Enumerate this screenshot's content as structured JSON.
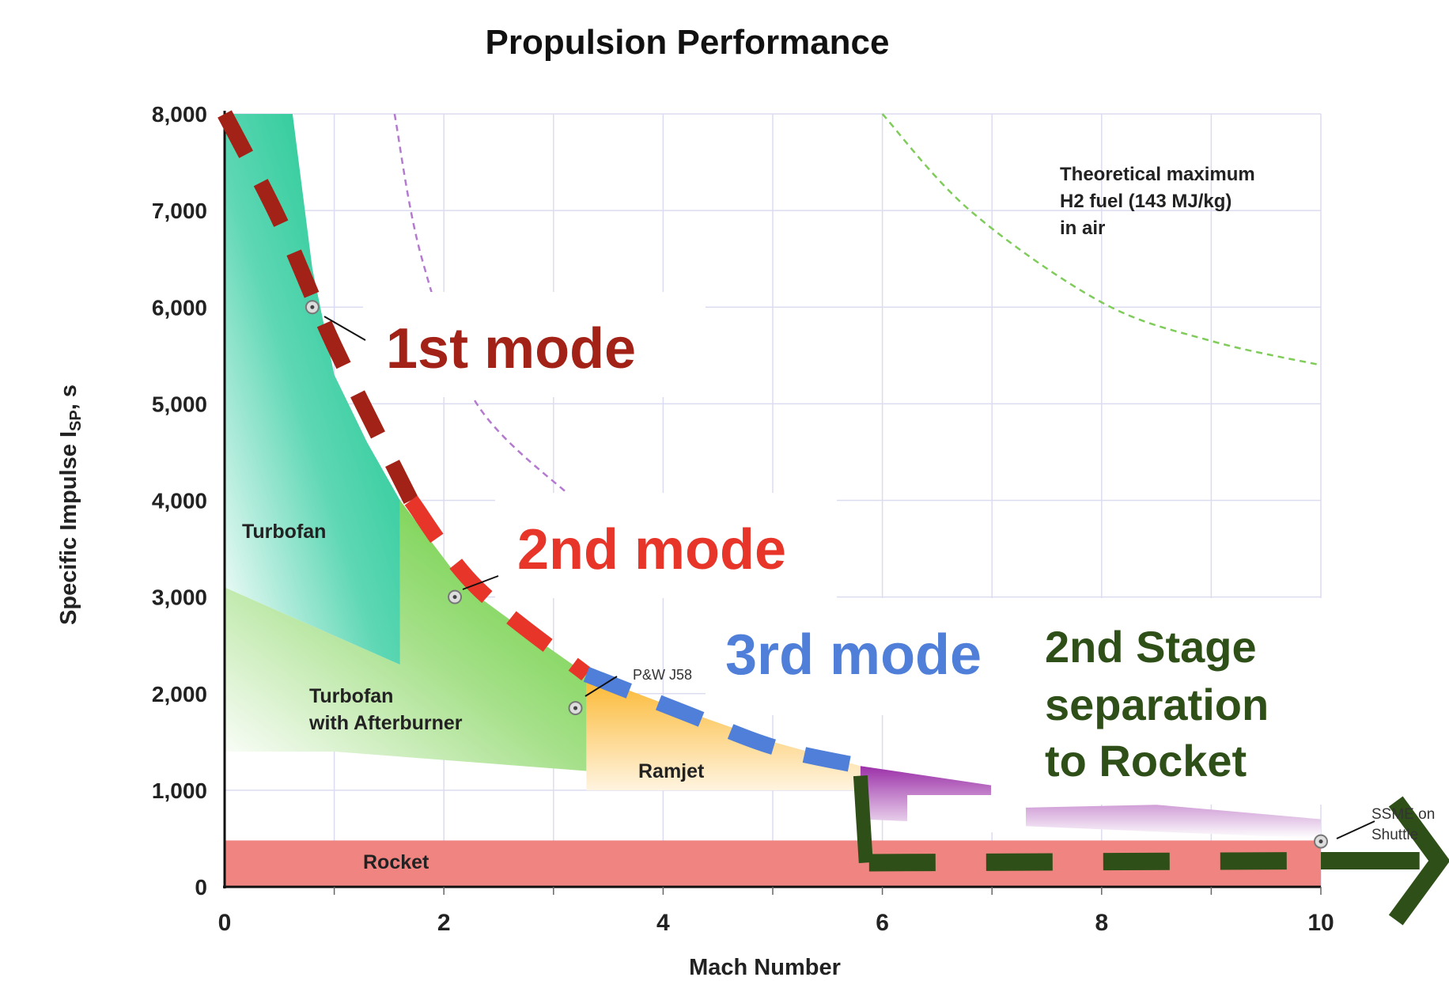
{
  "chart_data": {
    "type": "area",
    "title": "Propulsion Performance",
    "xlabel": "Mach Number",
    "ylabel": "Specific Impulse I",
    "ylabel_sub": "SP",
    "ylabel_unit": ", s",
    "xlim": [
      0,
      10
    ],
    "ylim": [
      0,
      8000
    ],
    "grid": true,
    "x_ticks": [
      "0",
      "2",
      "4",
      "6",
      "8",
      "10"
    ],
    "x_tick_values": [
      0,
      2,
      4,
      6,
      8,
      10
    ],
    "y_ticks": [
      "0",
      "1,000",
      "2,000",
      "3,000",
      "4,000",
      "5,000",
      "6,000",
      "7,000",
      "8,000"
    ],
    "y_tick_values": [
      0,
      1000,
      2000,
      3000,
      4000,
      5000,
      6000,
      7000,
      8000
    ],
    "regions": [
      {
        "name": "Turbofan",
        "color": "#13c38c",
        "polygon": [
          [
            0,
            8000
          ],
          [
            0.62,
            8000
          ],
          [
            0.8,
            6400
          ],
          [
            1.0,
            5300
          ],
          [
            1.3,
            4600
          ],
          [
            1.6,
            4000
          ],
          [
            1.6,
            2300
          ],
          [
            0,
            3100
          ]
        ]
      },
      {
        "name": "Turbofan with Afterburner",
        "color": "#66cc3d",
        "polygon": [
          [
            1.6,
            4000
          ],
          [
            2.2,
            3100
          ],
          [
            2.8,
            2600
          ],
          [
            3.3,
            2200
          ],
          [
            3.3,
            1200
          ],
          [
            1.0,
            1400
          ],
          [
            0,
            1400
          ],
          [
            0,
            3100
          ],
          [
            1.6,
            2300
          ]
        ]
      },
      {
        "name": "Ramjet",
        "color": "#fbb933",
        "polygon": [
          [
            3.3,
            2200
          ],
          [
            4.0,
            1900
          ],
          [
            5.0,
            1500
          ],
          [
            5.8,
            1250
          ],
          [
            5.8,
            1000
          ],
          [
            3.3,
            1000
          ]
        ]
      },
      {
        "name": "",
        "color": "#a43fb0",
        "polygon": [
          [
            5.8,
            1250
          ],
          [
            7.3,
            1000
          ],
          [
            7.3,
            820
          ],
          [
            8.5,
            850
          ],
          [
            10,
            700
          ],
          [
            10,
            500
          ],
          [
            5.8,
            700
          ]
        ]
      },
      {
        "name": "Rocket",
        "color": "#f08480",
        "polygon": [
          [
            0,
            480
          ],
          [
            10,
            480
          ],
          [
            10,
            0
          ],
          [
            0,
            0
          ]
        ]
      }
    ],
    "labels": {
      "turbofan": "Turbofan",
      "afterburner_1": "Turbofan",
      "afterburner_2": "with Afterburner",
      "ramjet": "Ramjet",
      "rocket": "Rocket",
      "pw_j58": "P&W J58",
      "ssme_1": "SSME on",
      "ssme_2": "Shuttle",
      "theoretical_1": "Theoretical maximum",
      "theoretical_2": "H2 fuel (143 MJ/kg)",
      "theoretical_3": "in air"
    },
    "reference_points": [
      [
        0.8,
        6000
      ],
      [
        2.1,
        3000
      ],
      [
        3.2,
        1850
      ],
      [
        10,
        470
      ]
    ],
    "dashed_curves": [
      {
        "color": "#b47ad0",
        "points": [
          [
            1.55,
            8000
          ],
          [
            1.8,
            6500
          ],
          [
            2.3,
            5000
          ],
          [
            3.2,
            4000
          ]
        ]
      },
      {
        "color": "#7fcc5a",
        "points": [
          [
            6.0,
            8000
          ],
          [
            6.8,
            7000
          ],
          [
            8.0,
            6050
          ],
          [
            9.0,
            5650
          ],
          [
            10,
            5400
          ]
        ]
      }
    ],
    "annotations": {
      "mode1": {
        "text": "1st mode",
        "color": "#a32218",
        "points": [
          [
            0,
            8000
          ],
          [
            0.5,
            6900
          ],
          [
            1.0,
            5600
          ],
          [
            1.7,
            4000
          ]
        ]
      },
      "mode2": {
        "text": "2nd mode",
        "color": "#e8352a",
        "points": [
          [
            1.7,
            4000
          ],
          [
            2.3,
            3100
          ],
          [
            3.3,
            2200
          ]
        ]
      },
      "mode3": {
        "text": "3rd mode",
        "color": "#4f7fd8",
        "points": [
          [
            3.3,
            2200
          ],
          [
            4.2,
            1800
          ],
          [
            5.0,
            1450
          ],
          [
            5.8,
            1250
          ]
        ]
      },
      "stage_sep": {
        "lines": [
          "2nd Stage",
          "separation",
          "to Rocket"
        ],
        "color": "#2f4f18",
        "points": [
          [
            5.8,
            1150
          ],
          [
            5.85,
            250
          ],
          [
            10.9,
            270
          ]
        ]
      }
    }
  }
}
